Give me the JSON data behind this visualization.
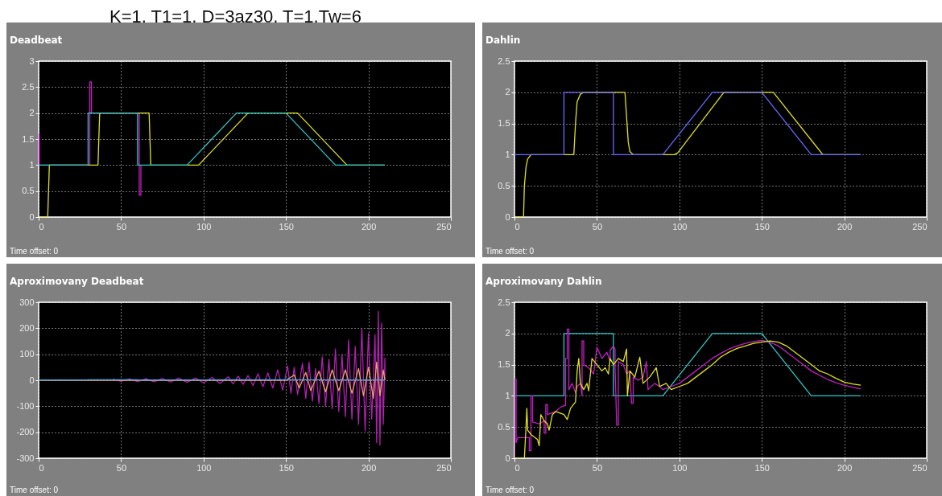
{
  "chart_data": [
    {
      "type": "line",
      "title": "Deadbeat",
      "annotations": [
        "K=1, T1=1, D=3az30, T=1,Tw=6",
        "Time offset:  0"
      ],
      "xlim": [
        0,
        250
      ],
      "ylim": [
        0,
        3
      ],
      "xticks": [
        0,
        50,
        100,
        150,
        200,
        250
      ],
      "yticks": [
        0,
        0.5,
        1,
        1.5,
        2,
        2.5,
        3
      ],
      "grid": true,
      "series": [
        {
          "color": "#c020c0",
          "x": [
            0,
            0,
            0.5,
            0.5,
            31,
            31,
            32,
            32,
            61,
            61,
            62,
            62
          ],
          "values": [
            1,
            1.6,
            1.6,
            1,
            1,
            2.6,
            2.6,
            2,
            2,
            0.42,
            0.42,
            1
          ]
        },
        {
          "color": "#e0e020",
          "x": [
            0,
            5.5,
            6.5,
            36,
            37,
            67,
            68,
            97,
            127,
            157,
            187,
            210
          ],
          "values": [
            0,
            0,
            1,
            1,
            2,
            2,
            1,
            1,
            2,
            2,
            1,
            1
          ]
        },
        {
          "color": "#30c8c8",
          "x": [
            0,
            30,
            30,
            60,
            60,
            90,
            120,
            150,
            180,
            210
          ],
          "values": [
            1,
            1,
            2,
            2,
            1,
            1,
            2,
            2,
            1,
            1
          ]
        }
      ]
    },
    {
      "type": "line",
      "title": "Dahlin",
      "annotations": [
        "Time offset:  0"
      ],
      "xlim": [
        0,
        250
      ],
      "ylim": [
        0,
        2.5
      ],
      "xticks": [
        0,
        50,
        100,
        150,
        200,
        250
      ],
      "yticks": [
        0,
        0.5,
        1,
        1.5,
        2,
        2.5
      ],
      "grid": true,
      "series": [
        {
          "color": "#e0e020",
          "x": [
            0,
            5.5,
            6,
            7,
            8,
            10,
            36,
            37,
            38,
            40,
            42,
            67,
            68,
            69,
            70,
            72,
            97,
            99,
            127,
            157,
            187,
            210
          ],
          "values": [
            0,
            0,
            0.5,
            0.8,
            0.93,
            1,
            1,
            1.5,
            1.85,
            1.97,
            2,
            2,
            1.6,
            1.2,
            1.05,
            1,
            1,
            1.03,
            2,
            2,
            1,
            1
          ]
        },
        {
          "color": "#6868ff",
          "x": [
            0,
            30,
            30,
            60,
            60,
            90,
            120,
            150,
            180,
            210
          ],
          "values": [
            1,
            1,
            2,
            2,
            1,
            1,
            2,
            2,
            1,
            1
          ]
        }
      ]
    },
    {
      "type": "line",
      "title": "Aproximovany Deadbeat",
      "annotations": [
        "Time offset:  0"
      ],
      "xlim": [
        0,
        250
      ],
      "ylim": [
        -300,
        300
      ],
      "xticks": [
        0,
        50,
        100,
        150,
        200,
        250
      ],
      "yticks": [
        -300,
        -200,
        -100,
        0,
        100,
        200,
        300
      ],
      "grid": true,
      "series": [
        {
          "color": "#b020b0",
          "x": [
            45,
            50,
            55,
            60,
            65,
            70,
            75,
            80,
            85,
            90,
            95,
            100,
            105,
            110,
            115,
            118,
            121,
            124,
            127,
            130,
            133,
            136,
            139,
            142,
            145,
            148,
            151,
            153,
            155,
            157,
            160,
            162,
            164,
            166,
            168,
            170,
            172,
            174,
            176,
            178,
            180,
            182,
            184,
            186,
            188,
            190,
            192,
            194,
            196,
            198,
            200,
            202,
            204,
            205,
            206,
            207,
            208,
            209,
            210,
            210
          ],
          "values": [
            4,
            -4,
            5,
            -5,
            6,
            -6,
            7,
            -7,
            8,
            -8,
            9,
            -10,
            11,
            -12,
            13,
            -14,
            16,
            -16,
            18,
            -20,
            25,
            -25,
            28,
            -30,
            40,
            -38,
            55,
            -50,
            50,
            -55,
            65,
            -70,
            70,
            -80,
            45,
            -90,
            90,
            -100,
            80,
            -110,
            120,
            -120,
            100,
            -140,
            155,
            -150,
            130,
            -170,
            200,
            -195,
            180,
            -150,
            175,
            -240,
            265,
            -250,
            220,
            -170,
            85,
            0
          ]
        },
        {
          "color": "#f0a070",
          "x": [
            0,
            150,
            155,
            158,
            162,
            165,
            170,
            174,
            178,
            182,
            186,
            190,
            194,
            197,
            200,
            203,
            205,
            207,
            209,
            210
          ],
          "values": [
            0,
            0,
            20,
            -30,
            30,
            -40,
            35,
            -45,
            40,
            -40,
            40,
            -50,
            45,
            -60,
            50,
            -70,
            70,
            -60,
            40,
            0
          ]
        },
        {
          "color": "#40a8e0",
          "x": [
            0,
            30,
            30,
            60,
            60,
            90,
            120,
            150,
            180,
            210
          ],
          "values": [
            1,
            1,
            2,
            2,
            1,
            1,
            2,
            2,
            1,
            1
          ]
        }
      ]
    },
    {
      "type": "line",
      "title": "Aproximovany Dahlin",
      "annotations": [
        "Time offset:  0"
      ],
      "xlim": [
        0,
        250
      ],
      "ylim": [
        0,
        2.5
      ],
      "xticks": [
        0,
        50,
        100,
        150,
        200,
        250
      ],
      "yticks": [
        0,
        0.5,
        1,
        1.5,
        2,
        2.5
      ],
      "grid": true,
      "series": [
        {
          "color": "#30c8c8",
          "x": [
            0,
            30,
            30,
            60,
            60,
            90,
            120,
            150,
            180,
            210
          ],
          "values": [
            1,
            1,
            2,
            2,
            1,
            1,
            2,
            2,
            1,
            1
          ]
        },
        {
          "color": "#c020c0",
          "x": [
            0,
            0,
            1,
            1,
            2,
            9,
            9,
            10,
            10,
            11,
            11,
            15,
            18,
            18,
            19,
            19,
            20,
            20,
            25,
            28,
            31,
            31,
            32,
            32,
            33,
            33,
            35,
            37,
            38,
            40,
            41,
            41,
            42,
            42,
            45,
            48,
            50,
            53,
            56,
            58,
            58,
            60,
            61,
            61,
            62,
            63,
            63,
            66,
            68,
            70,
            71,
            72,
            72,
            75,
            78,
            80,
            81,
            85,
            88,
            90,
            95,
            100,
            105,
            110,
            115,
            120,
            125,
            130,
            135,
            140,
            145,
            150,
            155,
            160,
            165,
            170,
            175,
            180,
            185,
            190,
            195,
            200,
            205,
            210
          ],
          "values": [
            0,
            1.27,
            1.27,
            0.25,
            0.33,
            0.33,
            0.12,
            0.12,
            1.0,
            1.0,
            0.58,
            0.55,
            0.6,
            0.4,
            0.4,
            0.86,
            0.86,
            0.7,
            0.75,
            0.82,
            0.85,
            1.6,
            1.6,
            2.07,
            2.07,
            1.1,
            1.2,
            1.05,
            1.15,
            1.2,
            1.0,
            1.88,
            1.88,
            1.5,
            1.45,
            1.35,
            1.78,
            1.6,
            1.7,
            1.55,
            1.73,
            1.8,
            1.75,
            1.45,
            0.53,
            0.53,
            1.55,
            1.5,
            1.35,
            1.4,
            0.88,
            0.88,
            1.3,
            1.25,
            1.3,
            1.55,
            1.1,
            1.2,
            1.15,
            1.1,
            1.15,
            1.2,
            1.3,
            1.4,
            1.5,
            1.6,
            1.68,
            1.75,
            1.8,
            1.84,
            1.87,
            1.89,
            1.86,
            1.8,
            1.7,
            1.6,
            1.5,
            1.4,
            1.33,
            1.26,
            1.21,
            1.17,
            1.14,
            1.11
          ]
        },
        {
          "color": "#e0e020",
          "x": [
            0,
            6,
            7,
            7.5,
            8,
            10,
            14,
            15,
            16,
            18,
            20,
            21,
            23,
            25,
            28,
            30,
            32,
            34,
            37,
            38,
            39,
            40,
            42,
            44,
            45,
            47,
            50,
            53,
            55,
            57,
            58,
            60,
            63,
            66,
            68,
            68.5,
            70,
            73,
            76,
            78,
            82,
            86,
            88,
            92,
            95,
            100,
            105,
            110,
            115,
            120,
            125,
            130,
            135,
            140,
            145,
            150,
            155,
            160,
            165,
            170,
            175,
            180,
            185,
            190,
            195,
            200,
            205,
            210
          ],
          "values": [
            0,
            0,
            0.5,
            0.8,
            0.45,
            0.38,
            0.3,
            0.2,
            0.7,
            0.6,
            0.55,
            0.45,
            0.7,
            0.75,
            0.72,
            0.7,
            0.62,
            0.8,
            0.9,
            1.4,
            1.6,
            1.2,
            1.1,
            1.2,
            1.08,
            1.6,
            1.5,
            1.4,
            1.45,
            1.35,
            1.6,
            1.5,
            1.6,
            1.55,
            1.75,
            1.0,
            1.4,
            1.3,
            1.62,
            1.2,
            1.3,
            1.45,
            1.15,
            1.2,
            1.1,
            1.15,
            1.2,
            1.3,
            1.4,
            1.5,
            1.62,
            1.7,
            1.76,
            1.8,
            1.84,
            1.86,
            1.88,
            1.86,
            1.8,
            1.7,
            1.6,
            1.5,
            1.4,
            1.35,
            1.28,
            1.22,
            1.19,
            1.17
          ]
        }
      ]
    }
  ]
}
